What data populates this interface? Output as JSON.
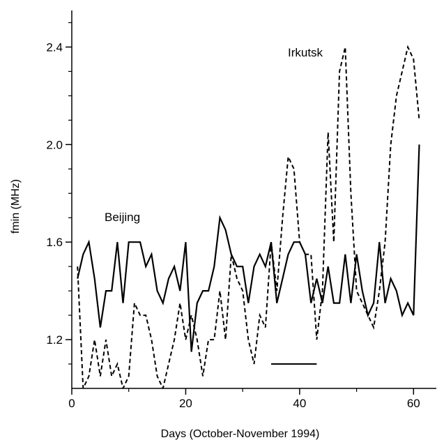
{
  "chart_data": {
    "type": "line",
    "xlabel": "Days (October-November 1994)",
    "ylabel": "fmin (MHz)",
    "xlim": [
      0,
      64
    ],
    "ylim": [
      1.0,
      2.55
    ],
    "x_ticks": [
      0,
      20,
      40,
      60
    ],
    "x_tick_labels": [
      "0",
      "20",
      "40",
      "60"
    ],
    "y_ticks": [
      1.2,
      1.6,
      2.0,
      2.4
    ],
    "y_tick_labels": [
      "1.2",
      "1.6",
      "2.0",
      "2.4"
    ],
    "grid": false,
    "legend": "none",
    "series": [
      {
        "name": "Beijing",
        "style": "solid",
        "color": "#000000",
        "x": [
          1,
          2,
          3,
          4,
          5,
          6,
          7,
          8,
          9,
          10,
          11,
          12,
          13,
          14,
          15,
          16,
          17,
          18,
          19,
          20,
          21,
          22,
          23,
          24,
          25,
          26,
          27,
          28,
          29,
          30,
          31,
          32,
          33,
          34,
          35,
          36,
          37,
          38,
          39,
          40,
          41,
          42,
          43,
          44,
          45,
          46,
          47,
          48,
          49,
          50,
          51,
          52,
          53,
          54,
          55,
          56,
          57,
          58,
          59,
          60,
          61
        ],
        "values": [
          1.45,
          1.55,
          1.6,
          1.45,
          1.25,
          1.4,
          1.4,
          1.6,
          1.35,
          1.6,
          1.6,
          1.6,
          1.5,
          1.55,
          1.4,
          1.35,
          1.45,
          1.5,
          1.4,
          1.6,
          1.15,
          1.35,
          1.4,
          1.4,
          1.5,
          1.7,
          1.65,
          1.55,
          1.5,
          1.5,
          1.35,
          1.5,
          1.55,
          1.5,
          1.6,
          1.35,
          1.45,
          1.55,
          1.6,
          1.6,
          1.55,
          1.35,
          1.45,
          1.35,
          1.5,
          1.35,
          1.35,
          1.55,
          1.35,
          1.55,
          1.4,
          1.3,
          1.35,
          1.6,
          1.35,
          1.45,
          1.4,
          1.3,
          1.35,
          1.3,
          2.0
        ]
      },
      {
        "name": "Irkutsk",
        "style": "dashed",
        "color": "#000000",
        "x": [
          1,
          2,
          3,
          4,
          5,
          6,
          7,
          8,
          9,
          10,
          11,
          12,
          13,
          14,
          15,
          16,
          17,
          18,
          19,
          20,
          21,
          22,
          23,
          24,
          25,
          26,
          27,
          28,
          29,
          30,
          31,
          32,
          33,
          34,
          35,
          36,
          37,
          38,
          39,
          40,
          41,
          42,
          43,
          44,
          45,
          46,
          47,
          48,
          49,
          50,
          51,
          52,
          53,
          54,
          55,
          56,
          57,
          58,
          59,
          60,
          61
        ],
        "values": [
          1.5,
          1.0,
          1.05,
          1.2,
          1.05,
          1.2,
          1.05,
          1.1,
          1.0,
          1.05,
          1.35,
          1.3,
          1.3,
          1.2,
          1.05,
          1.0,
          1.1,
          1.2,
          1.35,
          1.2,
          1.3,
          1.2,
          1.05,
          1.2,
          1.2,
          1.4,
          1.2,
          1.55,
          1.45,
          1.4,
          1.2,
          1.1,
          1.3,
          1.25,
          1.6,
          1.4,
          1.7,
          1.95,
          1.9,
          1.6,
          1.55,
          1.55,
          1.2,
          1.4,
          2.05,
          1.6,
          2.3,
          2.4,
          1.8,
          1.4,
          1.35,
          1.3,
          1.25,
          1.4,
          1.6,
          2.0,
          2.2,
          2.3,
          2.4,
          2.35,
          2.1
        ]
      }
    ],
    "annotations": [
      {
        "text": "Beijing"
      },
      {
        "text": "Irkutsk"
      }
    ],
    "segment": {
      "x": [
        35,
        43
      ],
      "y": 1.1
    }
  }
}
